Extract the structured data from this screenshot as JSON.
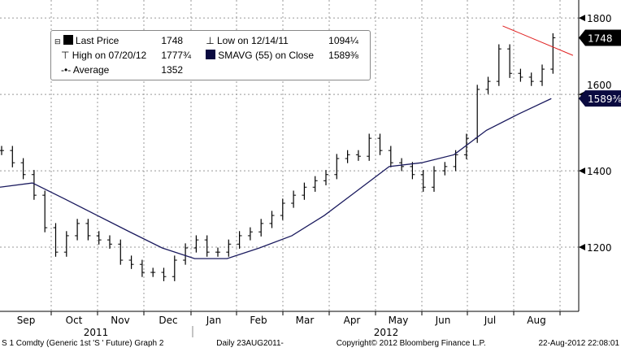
{
  "legend": {
    "last_price_label": "Last Price",
    "last_price_value": "1748",
    "high_label": "High on 07/20/12",
    "high_value": "1777¾",
    "average_label": "Average",
    "average_value": "1352",
    "low_label": "Low on 12/14/11",
    "low_value": "1094¼",
    "sma_label": "SMAVG (55) on Close",
    "sma_value": "1589⅜"
  },
  "footer": {
    "ticker": "S 1 Comdty (Generic 1st 'S ' Future) Graph 2",
    "period": "Daily 23AUG2011-",
    "copyright": "Copyright© 2012 Bloomberg Finance L.P.",
    "timestamp": "22-Aug-2012 22:08:01"
  },
  "colors": {
    "price": "#000000",
    "sma": "#1a1a5e",
    "trend": "#e02020",
    "last_tag": "#000000",
    "sma_tag": "#0a0a40"
  },
  "chart_data": {
    "type": "line",
    "title": "S 1 Comdty (Generic 1st 'S ' Future)",
    "xlabel": "",
    "ylabel": "",
    "ylim": [
      1032,
      1847
    ],
    "yticks": [
      "1200",
      "1400",
      "1600",
      "1800"
    ],
    "ytick_values": [
      1200,
      1400,
      1600,
      1800
    ],
    "months": [
      "Sep",
      "Oct",
      "Nov",
      "Dec",
      "Jan",
      "Feb",
      "Mar",
      "Apr",
      "May",
      "Jun",
      "Jul",
      "Aug"
    ],
    "years": [
      "2011",
      "2012"
    ],
    "x_unit": "weeks since 23-Aug-2011",
    "series": [
      {
        "name": "Last Price",
        "values": [
          1453,
          1421,
          1390,
          1336,
          1251,
          1187,
          1230,
          1262,
          1230,
          1219,
          1208,
          1166,
          1155,
          1134,
          1134,
          1123,
          1166,
          1198,
          1219,
          1187,
          1187,
          1208,
          1230,
          1240,
          1262,
          1283,
          1315,
          1336,
          1357,
          1374,
          1390,
          1432,
          1442,
          1438,
          1485,
          1453,
          1421,
          1411,
          1390,
          1357,
          1400,
          1411,
          1442,
          1485,
          1613,
          1634,
          1719,
          1655,
          1645,
          1634,
          1666,
          1748
        ]
      },
      {
        "name": "SMAVG (55) on Close",
        "x": [
          0,
          3,
          6,
          9,
          12,
          15,
          18,
          21,
          24,
          27,
          30,
          33,
          36,
          39,
          42,
          45,
          48,
          51
        ],
        "values": [
          1357,
          1368,
          1326,
          1283,
          1240,
          1198,
          1170,
          1170,
          1198,
          1230,
          1283,
          1347,
          1411,
          1421,
          1442,
          1506,
          1549,
          1589
        ]
      },
      {
        "name": "Trendline",
        "x": [
          46.5,
          53
        ],
        "values": [
          1779,
          1702
        ]
      }
    ],
    "last_tag": "1748",
    "sma_tag": "1589⅜"
  }
}
